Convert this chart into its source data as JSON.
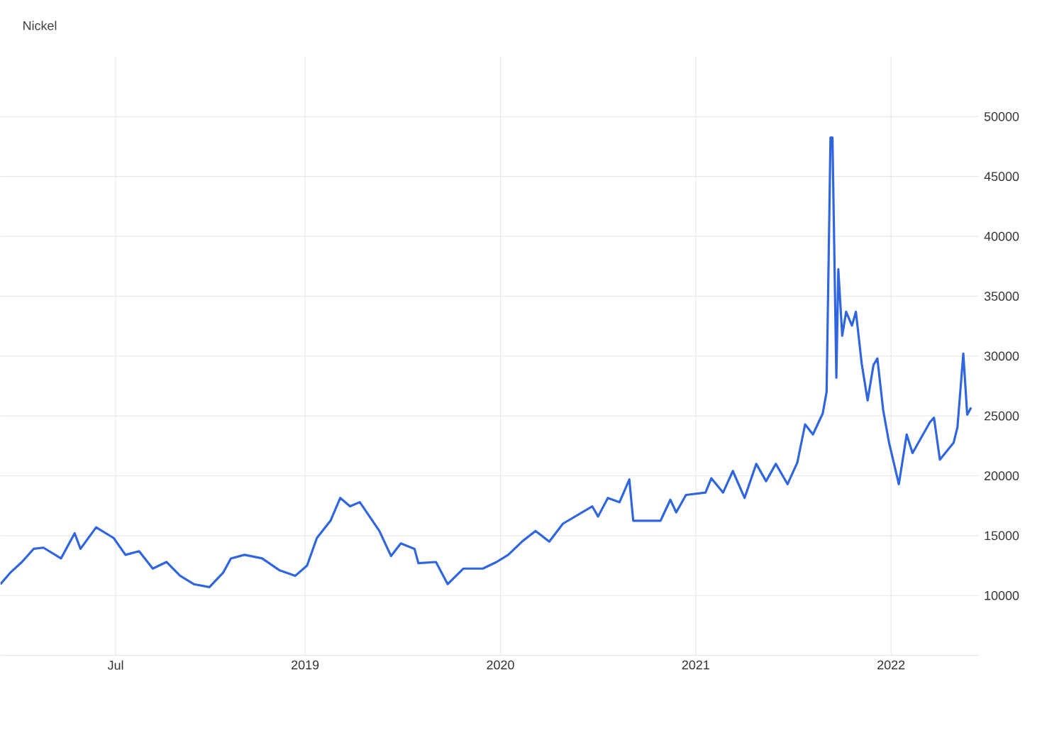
{
  "chart_data": {
    "type": "line",
    "title": "Nickel",
    "x": [
      2017.44,
      2017.49,
      2017.55,
      2017.61,
      2017.66,
      2017.75,
      2017.82,
      2017.85,
      2017.93,
      2018.02,
      2018.08,
      2018.15,
      2018.22,
      2018.29,
      2018.36,
      2018.43,
      2018.51,
      2018.58,
      2018.62,
      2018.69,
      2018.78,
      2018.87,
      2018.95,
      2019.01,
      2019.06,
      2019.13,
      2019.18,
      2019.23,
      2019.28,
      2019.33,
      2019.38,
      2019.44,
      2019.49,
      2019.56,
      2019.58,
      2019.67,
      2019.73,
      2019.81,
      2019.91,
      2019.98,
      2020.04,
      2020.11,
      2020.18,
      2020.25,
      2020.32,
      2020.47,
      2020.5,
      2020.55,
      2020.61,
      2020.66,
      2020.68,
      2020.82,
      2020.87,
      2020.9,
      2020.95,
      2021.05,
      2021.08,
      2021.14,
      2021.19,
      2021.25,
      2021.31,
      2021.36,
      2021.41,
      2021.47,
      2021.52,
      2021.56,
      2021.6,
      2021.65,
      2021.67,
      2021.69,
      2021.7,
      2021.72,
      2021.73,
      2021.75,
      2021.77,
      2021.8,
      2021.82,
      2021.85,
      2021.88,
      2021.91,
      2021.93,
      2021.96,
      2021.99,
      2022.04,
      2022.08,
      2022.11,
      2022.2,
      2022.22,
      2022.25,
      2022.32,
      2022.34,
      2022.37,
      2022.39,
      2022.41
    ],
    "series": [
      {
        "color": "#2f66e0",
        "values": [
          10950,
          11900,
          12800,
          13900,
          14000,
          13100,
          15200,
          13900,
          15700,
          14800,
          13400,
          13700,
          12250,
          12800,
          11650,
          10950,
          10700,
          11900,
          13100,
          13400,
          13100,
          12100,
          11650,
          12500,
          14800,
          16250,
          18150,
          17450,
          17800,
          16600,
          15400,
          13300,
          14350,
          13900,
          12700,
          12800,
          10950,
          12250,
          12250,
          12800,
          13400,
          14500,
          15400,
          14500,
          16000,
          17450,
          16600,
          18150,
          17800,
          19700,
          16250,
          16250,
          18000,
          16950,
          18400,
          18600,
          19800,
          18600,
          20400,
          18150,
          21000,
          19550,
          21000,
          19300,
          21100,
          24300,
          23450,
          25200,
          27000,
          48250,
          48250,
          28200,
          37250,
          31700,
          33700,
          32550,
          33700,
          29350,
          26300,
          29250,
          29800,
          25450,
          22750,
          19300,
          23450,
          21900,
          24500,
          24850,
          21350,
          22750,
          24050,
          30200,
          25100,
          25700
        ]
      }
    ],
    "xlim": [
      2017.44,
      2022.45
    ],
    "ylim": [
      5000,
      55000
    ],
    "xticks": [
      {
        "value": 2018.03,
        "label": "Jul"
      },
      2019,
      2020,
      2021,
      2022
    ],
    "yticks": [
      10000,
      15000,
      20000,
      25000,
      30000,
      35000,
      40000,
      45000,
      50000
    ],
    "grid": true
  }
}
